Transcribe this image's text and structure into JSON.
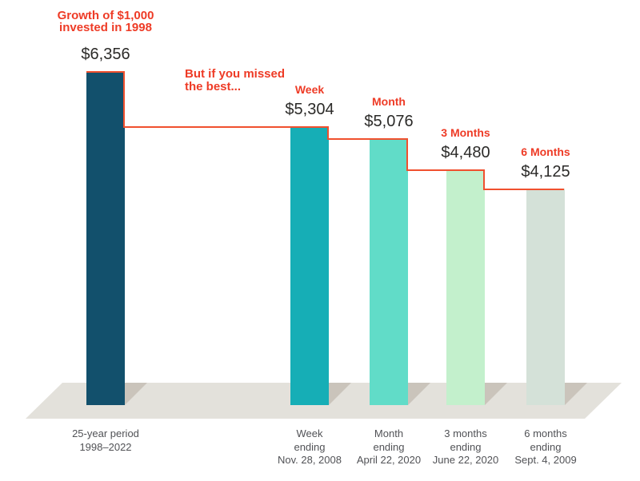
{
  "header": {
    "title_line1": "Growth of $1,000",
    "title_line2": "invested in 1998",
    "note_line1": "But if you missed",
    "note_line2": "the best..."
  },
  "colors": {
    "red_text": "#ee3b26",
    "step_line": "#f0502e",
    "value_text": "#2b2a28",
    "axis_text": "#515256",
    "floor": "#e3e1db",
    "floor_shadow": "#cac4bb",
    "bar_colors": [
      "#12506c",
      "#16aeb6",
      "#61dcc8",
      "#c3f0cc",
      "#d4e1d8"
    ]
  },
  "chart_data": {
    "type": "bar",
    "title": "Growth of $1,000 invested in 1998",
    "note": "But if you missed the best...",
    "ylabel": "",
    "xlabel": "",
    "ylim": [
      0,
      6356
    ],
    "grid": false,
    "legend": false,
    "categories": [
      "25-year period 1998–2022",
      "Week ending Nov. 28, 2008",
      "Month ending April 22, 2020",
      "3 months ending June 22, 2020",
      "6 months ending Sept. 4, 2009"
    ],
    "values": [
      6356,
      5304,
      5076,
      4480,
      4125
    ],
    "bars": [
      {
        "period_label": "",
        "value": 6356,
        "value_label": "$6,356",
        "axis_lines": [
          "25-year period",
          "1998–2022"
        ],
        "color": "#12506c"
      },
      {
        "period_label": "Week",
        "value": 5304,
        "value_label": "$5,304",
        "axis_lines": [
          "Week",
          "ending",
          "Nov. 28, 2008"
        ],
        "color": "#16aeb6"
      },
      {
        "period_label": "Month",
        "value": 5076,
        "value_label": "$5,076",
        "axis_lines": [
          "Month",
          "ending",
          "April 22, 2020"
        ],
        "color": "#61dcc8"
      },
      {
        "period_label": "3 Months",
        "value": 4480,
        "value_label": "$4,480",
        "axis_lines": [
          "3 months",
          "ending",
          "June 22, 2020"
        ],
        "color": "#c3f0cc"
      },
      {
        "period_label": "6 Months",
        "value": 4125,
        "value_label": "$4,125",
        "axis_lines": [
          "6 months",
          "ending",
          "Sept. 4, 2009"
        ],
        "color": "#d4e1d8"
      }
    ]
  }
}
